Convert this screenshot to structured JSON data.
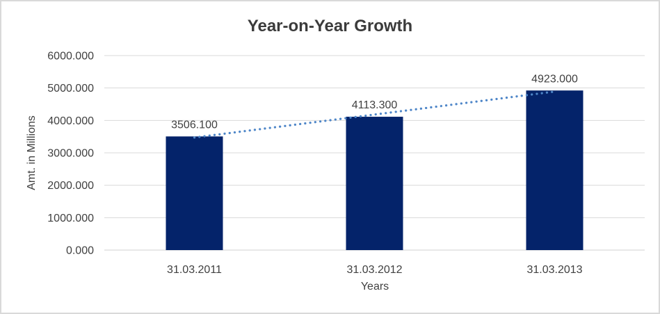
{
  "chart_data": {
    "type": "bar",
    "title": "Year-on-Year Growth",
    "categories": [
      "31.03.2011",
      "31.03.2012",
      "31.03.2013"
    ],
    "values": [
      3506.1,
      4113.3,
      4923.0
    ],
    "data_labels": [
      "3506.100",
      "4113.300",
      "4923.000"
    ],
    "xlabel": "Years",
    "ylabel": "Amt. in Millions",
    "ylim": [
      0,
      6000
    ],
    "ytick_step": 1000,
    "ytick_labels": [
      "0.000",
      "1000.000",
      "2000.000",
      "3000.000",
      "4000.000",
      "5000.000",
      "6000.000"
    ],
    "grid": true,
    "legend": "none",
    "trendline": {
      "type": "linear",
      "style": "dotted"
    }
  },
  "colors": {
    "bar": "#04236a",
    "trendline": "#4e86c8",
    "gridline": "#d9d9d9",
    "axis_line": "#d0d0d0",
    "label_text": "#404040",
    "title_text": "#3b3b3b",
    "frame_border": "#d9d9d9"
  }
}
